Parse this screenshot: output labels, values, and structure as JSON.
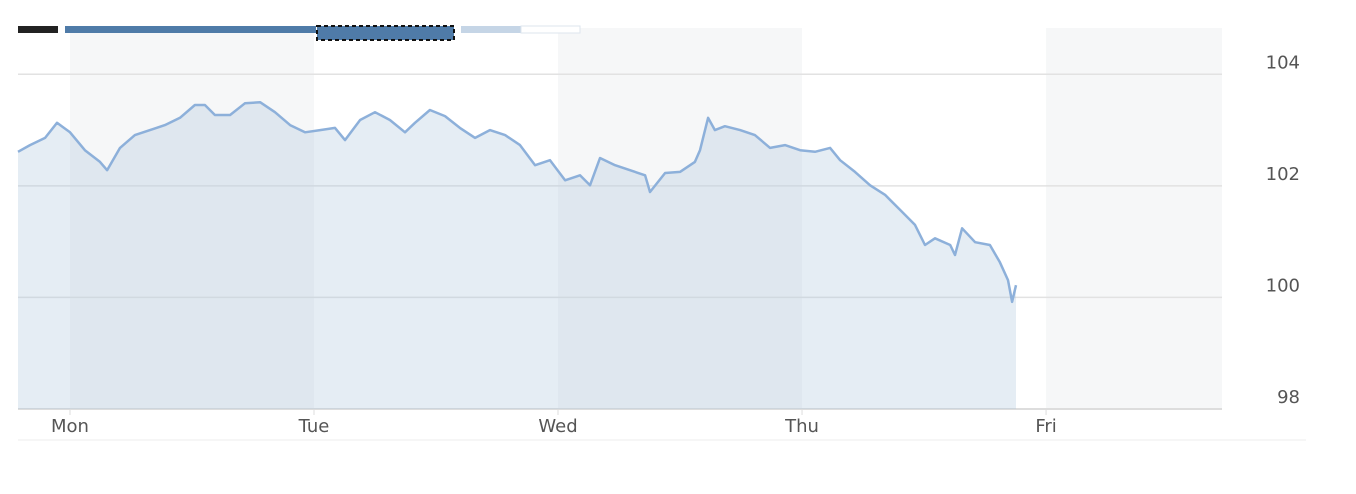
{
  "chart_data": {
    "type": "area",
    "color": "#8db0da",
    "grid": true,
    "xlim": [
      -0.213,
      4.721
    ],
    "xticks": [
      {
        "value": 0,
        "label": "Mon"
      },
      {
        "value": 1,
        "label": "Tue"
      },
      {
        "value": 2,
        "label": "Wed"
      },
      {
        "value": 3,
        "label": "Thu"
      },
      {
        "value": 4,
        "label": "Fri"
      }
    ],
    "ylim": [
      98,
      104.83
    ],
    "yticks": [
      98,
      100,
      102,
      104
    ],
    "x": [
      -0.213,
      -0.164,
      -0.102,
      -0.053,
      0,
      0.061,
      0.123,
      0.152,
      0.205,
      0.266,
      0.328,
      0.389,
      0.451,
      0.512,
      0.553,
      0.594,
      0.656,
      0.717,
      0.779,
      0.84,
      0.902,
      0.963,
      1.025,
      1.086,
      1.127,
      1.189,
      1.25,
      1.311,
      1.373,
      1.414,
      1.475,
      1.537,
      1.598,
      1.66,
      1.721,
      1.783,
      1.844,
      1.906,
      1.967,
      2.029,
      2.09,
      2.131,
      2.172,
      2.234,
      2.295,
      2.357,
      2.377,
      2.439,
      2.5,
      2.561,
      2.582,
      2.615,
      2.643,
      2.684,
      2.746,
      2.807,
      2.869,
      2.93,
      2.992,
      3.053,
      3.115,
      3.156,
      3.217,
      3.279,
      3.34,
      3.402,
      3.463,
      3.504,
      3.545,
      3.607,
      3.627,
      3.656,
      3.709,
      3.77,
      3.811,
      3.844,
      3.861,
      3.877
    ],
    "values": [
      102.61,
      102.73,
      102.86,
      103.13,
      102.96,
      102.64,
      102.43,
      102.28,
      102.68,
      102.91,
      103.0,
      103.09,
      103.22,
      103.45,
      103.45,
      103.27,
      103.27,
      103.48,
      103.5,
      103.32,
      103.09,
      102.96,
      103.0,
      103.04,
      102.82,
      103.18,
      103.32,
      103.18,
      102.96,
      103.13,
      103.36,
      103.25,
      103.04,
      102.86,
      103.0,
      102.91,
      102.73,
      102.37,
      102.46,
      102.1,
      102.19,
      102.01,
      102.5,
      102.37,
      102.28,
      102.19,
      101.89,
      102.23,
      102.25,
      102.43,
      102.64,
      103.22,
      103.0,
      103.07,
      103.0,
      102.91,
      102.68,
      102.73,
      102.64,
      102.61,
      102.68,
      102.46,
      102.25,
      102.01,
      101.84,
      101.57,
      101.3,
      100.94,
      101.06,
      100.94,
      100.76,
      101.24,
      100.99,
      100.94,
      100.63,
      100.31,
      99.92,
      100.22
    ]
  }
}
